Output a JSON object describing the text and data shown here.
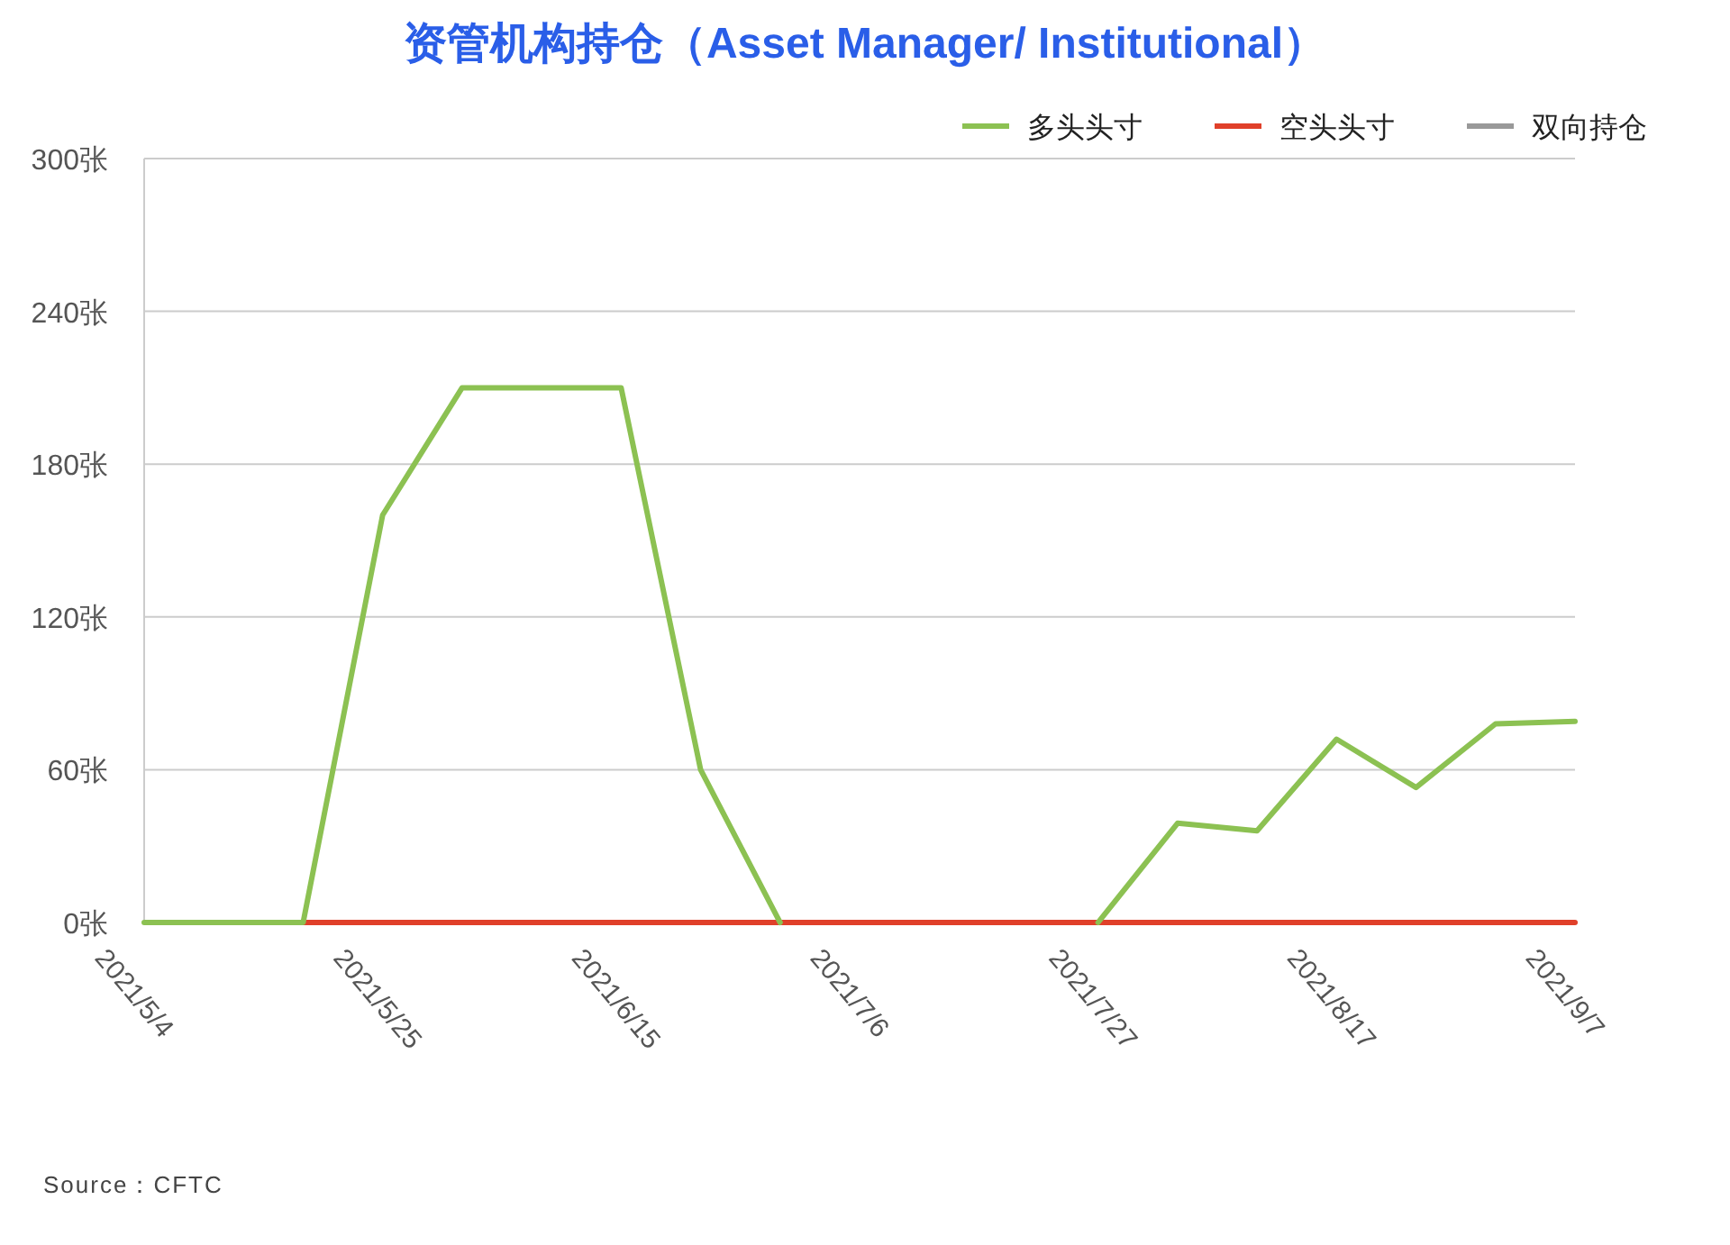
{
  "chart_data": {
    "type": "line",
    "title": "资管机构持仓（Asset Manager/ Institutional）",
    "categories": [
      "2021/5/4",
      null,
      null,
      "2021/5/25",
      null,
      null,
      "2021/6/15",
      null,
      null,
      "2021/7/6",
      null,
      null,
      "2021/7/27",
      null,
      null,
      "2021/8/17",
      null,
      null,
      "2021/9/7"
    ],
    "series": [
      {
        "name": "多头头寸",
        "color": "#8cc152",
        "values": [
          0,
          0,
          0,
          160,
          210,
          210,
          210,
          60,
          0,
          null,
          null,
          null,
          0,
          39,
          36,
          72,
          53,
          78,
          79
        ]
      },
      {
        "name": "空头头寸",
        "color": "#e0402a",
        "values": [
          null,
          null,
          0,
          0,
          0,
          0,
          0,
          0,
          0,
          0,
          0,
          0,
          0,
          0,
          0,
          0,
          0,
          0,
          0
        ]
      },
      {
        "name": "双向持仓",
        "color": "#999999",
        "values": [
          null,
          null,
          null,
          null,
          null,
          null,
          null,
          null,
          null,
          null,
          null,
          null,
          null,
          null,
          null,
          null,
          null,
          null,
          null
        ]
      }
    ],
    "ylim": [
      0,
      300
    ],
    "yticks": [
      {
        "value": 0,
        "label": "0张"
      },
      {
        "value": 60,
        "label": "60张"
      },
      {
        "value": 120,
        "label": "120张"
      },
      {
        "value": 180,
        "label": "180张"
      },
      {
        "value": 240,
        "label": "240张"
      },
      {
        "value": 300,
        "label": "300张"
      }
    ],
    "grid": "y",
    "legend": "top right",
    "annotations": [
      "Source：CFTC"
    ]
  }
}
